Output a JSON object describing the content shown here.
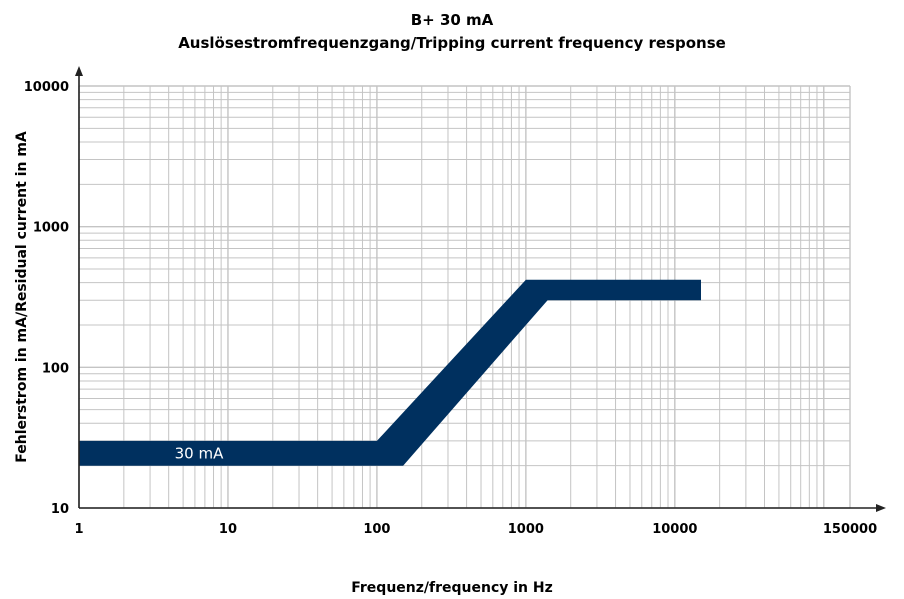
{
  "chart_data": {
    "type": "area",
    "title": "B+ 30 mA",
    "subtitle": "Auslösestromfrequenzgang/Tripping current frequency response",
    "xlabel": "Frequenz/frequency in Hz",
    "ylabel": "Fehlerstrom in mA/Residual current in mA",
    "x_scale": "log",
    "y_scale": "log",
    "xlim": [
      1,
      150000
    ],
    "ylim": [
      10,
      10000
    ],
    "x_ticks": [
      "1",
      "10",
      "100",
      "1000",
      "10000",
      "150000"
    ],
    "y_ticks": [
      "10",
      "100",
      "1000",
      "10000"
    ],
    "grid": true,
    "band_color": "#00305f",
    "series": [
      {
        "name": "30 mA",
        "upper": {
          "x": [
            1,
            100,
            1000,
            15000
          ],
          "y": [
            30,
            30,
            420,
            420
          ]
        },
        "lower": {
          "x": [
            1,
            150,
            1400,
            15000
          ],
          "y": [
            20,
            20,
            300,
            300
          ]
        }
      }
    ]
  }
}
